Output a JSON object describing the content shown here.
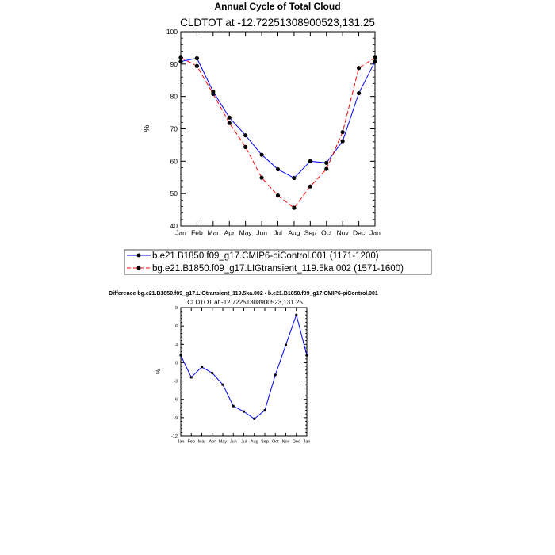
{
  "chart_data": [
    {
      "type": "line",
      "title": "Annual Cycle of Total Cloud",
      "subtitle": "CLDTOT at -12.72251308900523,131.25",
      "xlabel": "",
      "ylabel": "%",
      "categories": [
        "Jan",
        "Feb",
        "Mar",
        "Apr",
        "May",
        "Jun",
        "Jul",
        "Aug",
        "Sep",
        "Oct",
        "Nov",
        "Dec",
        "Jan"
      ],
      "ylim": [
        40,
        100
      ],
      "yticks": [
        40,
        50,
        60,
        70,
        80,
        90,
        100
      ],
      "grid": false,
      "legend_position": "bottom",
      "series": [
        {
          "name": "b.e21.B1850.f09_g17.CMIP6-piControl.001 (1171-1200)",
          "color": "#0000ff",
          "dash": "solid",
          "values": [
            90.8,
            91.8,
            81.5,
            73.5,
            68.0,
            62.0,
            57.5,
            54.8,
            60.0,
            59.5,
            66.2,
            81.0,
            90.8
          ]
        },
        {
          "name": "bg.e21.B1850.f09_g17.LIGtransient_119.5ka.002 (1571-1600)",
          "color": "#ff0000",
          "dash": "dashed",
          "values": [
            92.0,
            89.4,
            80.8,
            71.8,
            64.4,
            54.9,
            49.4,
            45.6,
            52.2,
            57.6,
            69.0,
            88.8,
            92.0
          ]
        }
      ]
    },
    {
      "type": "line",
      "title": "Difference bg.e21.B1850.f09_g17.LIGtransient_119.5ka.002 - b.e21.B1850.f09_g17.CMIP6-piControl.001",
      "subtitle": "CLDTOT at -12.72251308900523,131.25",
      "xlabel": "",
      "ylabel": "%",
      "categories": [
        "Jan",
        "Feb",
        "Mar",
        "Apr",
        "May",
        "Jun",
        "Jul",
        "Aug",
        "Sep",
        "Oct",
        "Nov",
        "Dec",
        "Jan"
      ],
      "ylim": [
        -12,
        9
      ],
      "yticks": [
        -12,
        -9,
        -6,
        -3,
        0,
        3,
        6,
        9
      ],
      "grid": false,
      "series": [
        {
          "name": "difference",
          "color": "#0000ff",
          "dash": "solid",
          "values": [
            1.2,
            -2.4,
            -0.7,
            -1.7,
            -3.6,
            -7.1,
            -8.0,
            -9.2,
            -7.8,
            -2.0,
            2.9,
            7.8,
            1.2
          ]
        }
      ]
    }
  ]
}
